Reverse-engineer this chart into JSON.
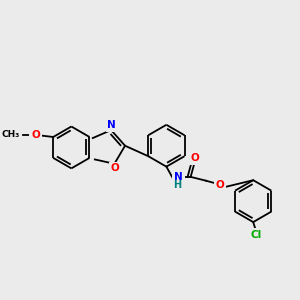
{
  "background_color": "#ebebeb",
  "bond_color": "#000000",
  "atom_colors": {
    "O": "#ff0000",
    "N": "#0000ff",
    "Cl": "#00aa00",
    "H_N": "#008080"
  },
  "bond_lw": 1.3,
  "dbo": 0.12,
  "figsize": [
    3.0,
    3.0
  ],
  "dpi": 100,
  "xlim": [
    0.0,
    11.0
  ],
  "ylim": [
    1.5,
    9.5
  ]
}
